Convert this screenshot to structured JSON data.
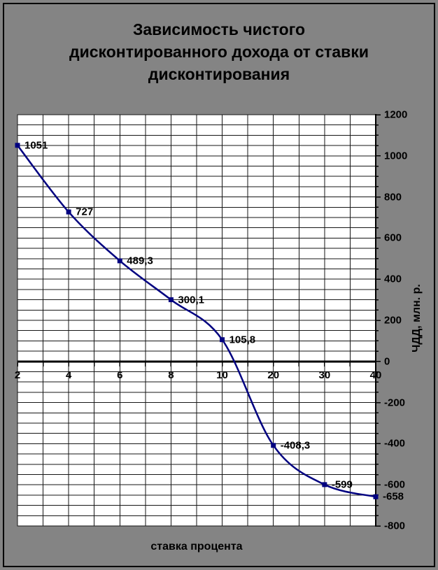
{
  "title": "Зависимость чистого\nдисконтированного дохода от ставки\nдисконтирования",
  "chart_data": {
    "type": "line",
    "smooth": true,
    "categories": [
      "2",
      "4",
      "6",
      "8",
      "10",
      "20",
      "30",
      "40"
    ],
    "series": [
      {
        "name": "ЧДД",
        "values": [
          1051,
          727,
          489.3,
          300.1,
          105.8,
          -408.3,
          -599,
          -658
        ],
        "point_labels": [
          "1051",
          "727",
          "489,3",
          "300,1",
          "105,8",
          "-408,3",
          "-599",
          "-658"
        ],
        "color": "#000080"
      }
    ],
    "xlabel": "ставка процента",
    "ylabel": "ЧДД, млн. р.",
    "ylim": [
      -800,
      1200
    ],
    "y_major_step": 200,
    "y_minor_step": 50,
    "y_tick_labels": [
      "1200",
      "1000",
      "800",
      "600",
      "400",
      "200",
      "0",
      "-200",
      "-400",
      "-600",
      "-800"
    ],
    "y_axis_side": "right",
    "grid": true,
    "legend_position": "none"
  },
  "colors": {
    "chart_bg": "#848484",
    "plot_bg": "#ffffff",
    "frame_border": "#000000",
    "grid": "#161616",
    "axis": "#000000",
    "series": "#000080",
    "text": "#000000"
  }
}
